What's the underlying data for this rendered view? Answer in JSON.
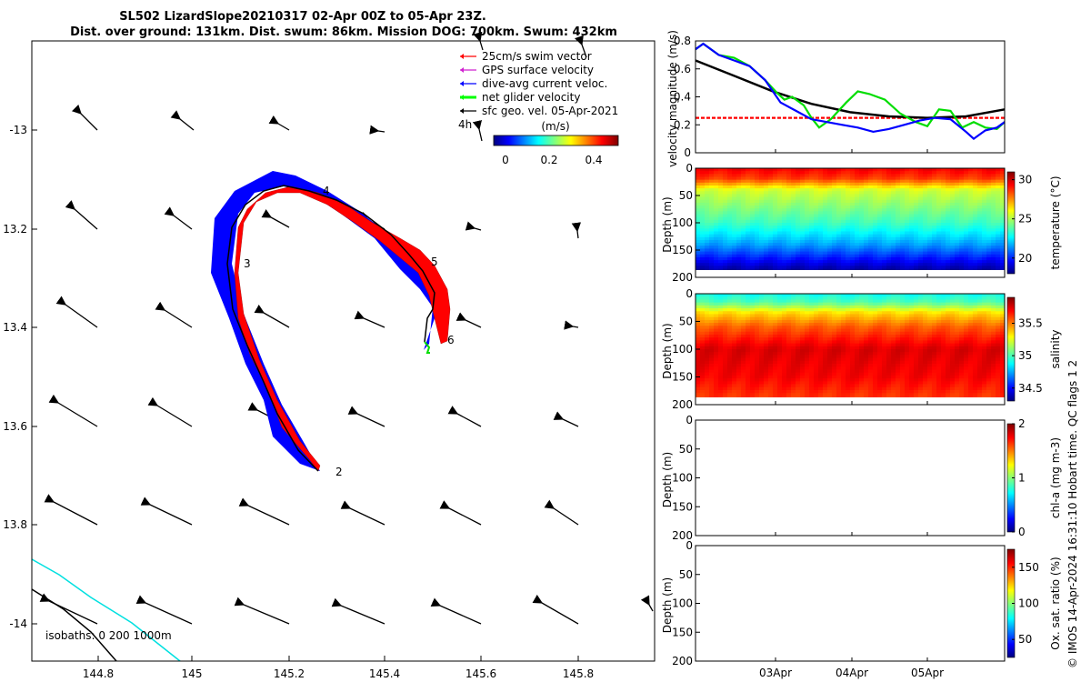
{
  "title": {
    "line1": "SL502 LizardSlope20210317 02-Apr 00Z to 05-Apr 23Z.",
    "line2": "Dist. over ground: 131km. Dist. swum: 86km. Mission DOG: 700km. Swum: 432km"
  },
  "map": {
    "x_ticks": [
      "144.8",
      "145",
      "145.2",
      "145.4",
      "145.6",
      "145.8"
    ],
    "y_ticks": [
      "-13",
      "13.2",
      "13.4",
      "13.6",
      "13.8",
      "-14"
    ],
    "legend": [
      {
        "label": "25cm/s swim vector",
        "color": "#ff0000"
      },
      {
        "label": "GPS surface velocity",
        "color": "#d020d0"
      },
      {
        "label": "dive-avg current veloc.",
        "color": "#0000ff"
      },
      {
        "label": "net glider velocity",
        "color": "#00ff00"
      },
      {
        "label": "sfc geo. vel. 05-Apr-2021",
        "color": "#000000"
      }
    ],
    "colorbar": {
      "unit": "(m/s)",
      "ticks": [
        "0",
        "0.2",
        "0.4"
      ]
    },
    "isobaths_label": "isobaths: 0   200  1000m",
    "track_labels": [
      "2",
      "3",
      "4",
      "5",
      "6"
    ],
    "time_marker": "4h",
    "colors": {
      "glider_track": "#0000ff",
      "swim": "#ff0000",
      "isobath_shallow": "#00e0e0",
      "isobath_deep": "#000000"
    }
  },
  "chart_data": [
    {
      "type": "line",
      "panel": "velocity",
      "ylabel": "velocity magnitude (m/s)",
      "y_ticks": [
        "0",
        "0.2",
        "0.4",
        "0.6",
        "0.8"
      ],
      "ylim": [
        0,
        0.8
      ],
      "xlim": [
        0,
        4
      ],
      "x_tick_labels": [
        "03Apr",
        "04Apr",
        "05Apr"
      ],
      "series": [
        {
          "color": "#ff0000",
          "x": [
            0,
            4
          ],
          "values": [
            0.25,
            0.25
          ]
        },
        {
          "color": "#000000",
          "x": [
            0,
            0.5,
            1,
            1.5,
            2,
            2.5,
            3,
            3.5,
            4
          ],
          "values": [
            0.66,
            0.55,
            0.44,
            0.35,
            0.29,
            0.26,
            0.25,
            0.26,
            0.31
          ]
        },
        {
          "color": "#00dd00",
          "x": [
            0,
            0.1,
            0.3,
            0.5,
            0.7,
            0.9,
            1.05,
            1.15,
            1.25,
            1.4,
            1.5,
            1.6,
            1.75,
            1.95,
            2.1,
            2.25,
            2.45,
            2.65,
            2.85,
            3.0,
            3.15,
            3.3,
            3.45,
            3.6,
            3.75,
            3.9,
            4.0
          ],
          "values": [
            0.74,
            0.78,
            0.7,
            0.68,
            0.62,
            0.52,
            0.43,
            0.38,
            0.4,
            0.34,
            0.25,
            0.18,
            0.24,
            0.36,
            0.44,
            0.42,
            0.38,
            0.28,
            0.22,
            0.19,
            0.31,
            0.3,
            0.18,
            0.22,
            0.18,
            0.17,
            0.22
          ]
        },
        {
          "color": "#0000ff",
          "x": [
            0,
            0.1,
            0.3,
            0.5,
            0.7,
            0.9,
            1.1,
            1.3,
            1.5,
            1.7,
            1.9,
            2.1,
            2.3,
            2.5,
            2.7,
            2.9,
            3.1,
            3.3,
            3.5,
            3.6,
            3.75,
            3.9,
            4.0
          ],
          "values": [
            0.74,
            0.78,
            0.7,
            0.66,
            0.62,
            0.52,
            0.36,
            0.3,
            0.24,
            0.22,
            0.2,
            0.18,
            0.15,
            0.17,
            0.2,
            0.23,
            0.25,
            0.24,
            0.15,
            0.1,
            0.16,
            0.18,
            0.22
          ]
        }
      ]
    },
    {
      "type": "heatmap",
      "panel": "temperature",
      "ylabel": "Depth (m)",
      "y_ticks": [
        "0",
        "50",
        "100",
        "150",
        "200"
      ],
      "ylim": [
        0,
        200
      ],
      "colorbar_label": "temperature (°C)",
      "colorbar_ticks": [
        "30",
        "25",
        "20"
      ],
      "crange": [
        18,
        31
      ],
      "profile": [
        {
          "depth": 0,
          "value": 29.5
        },
        {
          "depth": 20,
          "value": 28.5
        },
        {
          "depth": 40,
          "value": 25.5
        },
        {
          "depth": 70,
          "value": 24.5
        },
        {
          "depth": 100,
          "value": 23.5
        },
        {
          "depth": 140,
          "value": 21.5
        },
        {
          "depth": 170,
          "value": 19.5
        },
        {
          "depth": 190,
          "value": 18.2
        }
      ]
    },
    {
      "type": "heatmap",
      "panel": "salinity",
      "ylabel": "Depth (m)",
      "y_ticks": [
        "0",
        "50",
        "100",
        "150",
        "200"
      ],
      "ylim": [
        0,
        200
      ],
      "colorbar_label": "salinity",
      "colorbar_ticks": [
        "35.5",
        "35",
        "34.5"
      ],
      "crange": [
        34.3,
        35.9
      ],
      "profile": [
        {
          "depth": 0,
          "value": 34.9
        },
        {
          "depth": 15,
          "value": 35.0
        },
        {
          "depth": 35,
          "value": 35.35
        },
        {
          "depth": 60,
          "value": 35.55
        },
        {
          "depth": 100,
          "value": 35.75
        },
        {
          "depth": 150,
          "value": 35.7
        },
        {
          "depth": 190,
          "value": 35.6
        }
      ]
    },
    {
      "type": "heatmap",
      "panel": "chlorophyll",
      "ylabel": "Depth (m)",
      "y_ticks": [
        "0",
        "50",
        "100",
        "150",
        "200"
      ],
      "ylim": [
        0,
        200
      ],
      "colorbar_label": "chl-a (mg m-3)",
      "colorbar_ticks": [
        "2",
        "1",
        "0"
      ],
      "crange": [
        0,
        2
      ]
    },
    {
      "type": "heatmap",
      "panel": "oxygen",
      "ylabel": "Depth (m)",
      "y_ticks": [
        "0",
        "50",
        "100",
        "150",
        "200"
      ],
      "ylim": [
        0,
        200
      ],
      "x_tick_labels": [
        "03Apr",
        "04Apr",
        "05Apr"
      ],
      "colorbar_label": "Ox. sat. ratio (%)",
      "colorbar_ticks": [
        "150",
        "100",
        "50"
      ],
      "crange": [
        25,
        175
      ]
    }
  ],
  "side_text": "© IMOS 14-Apr-2024 16:31:10 Hobart time. QC flags 1  2"
}
